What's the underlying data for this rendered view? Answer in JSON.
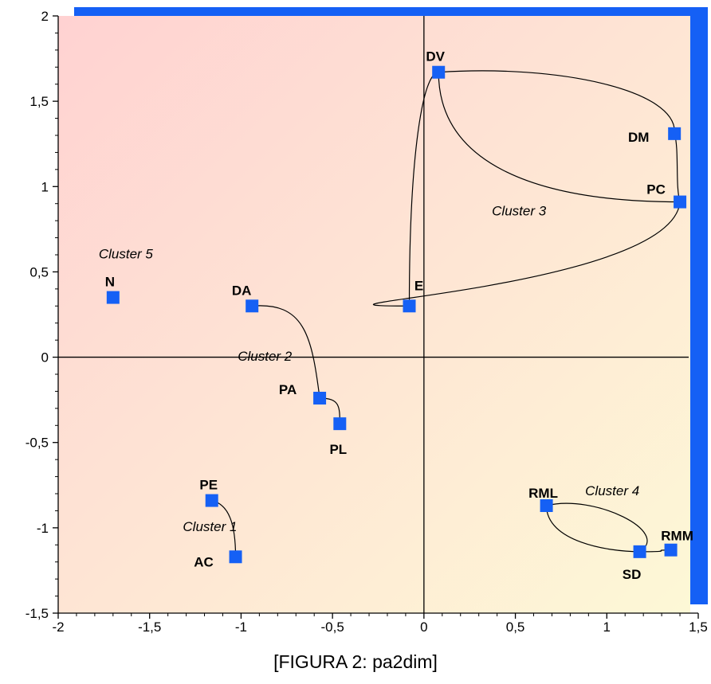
{
  "caption": "[FIGURA 2: pa2dim]",
  "chart_data": {
    "type": "scatter",
    "xlim": [
      -2,
      1.5
    ],
    "ylim": [
      -1.5,
      2
    ],
    "x_ticks": [
      -2,
      -1.5,
      -1,
      -0.5,
      0,
      0.5,
      1,
      1.5
    ],
    "x_tick_labels": [
      "-2",
      "-1,5",
      "-1",
      "-0,5",
      "0",
      "0,5",
      "1",
      "1,5"
    ],
    "y_ticks": [
      -1.5,
      -1,
      -0.5,
      0,
      0.5,
      1,
      1.5,
      2
    ],
    "y_tick_labels": [
      "-1,5",
      "-1",
      "-0,5",
      "0",
      "0,5",
      "1",
      "1,5",
      "2"
    ],
    "grid": false,
    "marker_color": "#1560f5",
    "frame_color": "#1560f5",
    "points": [
      {
        "label": "DV",
        "x": 0.08,
        "y": 1.67
      },
      {
        "label": "DM",
        "x": 1.37,
        "y": 1.31
      },
      {
        "label": "PC",
        "x": 1.4,
        "y": 0.91
      },
      {
        "label": "E",
        "x": -0.08,
        "y": 0.3
      },
      {
        "label": "N",
        "x": -1.7,
        "y": 0.35
      },
      {
        "label": "DA",
        "x": -0.94,
        "y": 0.3
      },
      {
        "label": "PA",
        "x": -0.57,
        "y": -0.24
      },
      {
        "label": "PL",
        "x": -0.46,
        "y": -0.39
      },
      {
        "label": "PE",
        "x": -1.16,
        "y": -0.84
      },
      {
        "label": "AC",
        "x": -1.03,
        "y": -1.17
      },
      {
        "label": "RML",
        "x": 0.67,
        "y": -0.87
      },
      {
        "label": "SD",
        "x": 1.18,
        "y": -1.14
      },
      {
        "label": "RMM",
        "x": 1.35,
        "y": -1.13
      }
    ],
    "clusters": [
      {
        "label": "Cluster 1",
        "members": [
          "PE",
          "AC"
        ]
      },
      {
        "label": "Cluster 2",
        "members": [
          "DA",
          "PA",
          "PL"
        ]
      },
      {
        "label": "Cluster 3",
        "members": [
          "DV",
          "DM",
          "PC",
          "E"
        ]
      },
      {
        "label": "Cluster 4",
        "members": [
          "RML",
          "SD",
          "RMM"
        ]
      },
      {
        "label": "Cluster 5",
        "members": [
          "N"
        ]
      }
    ]
  }
}
